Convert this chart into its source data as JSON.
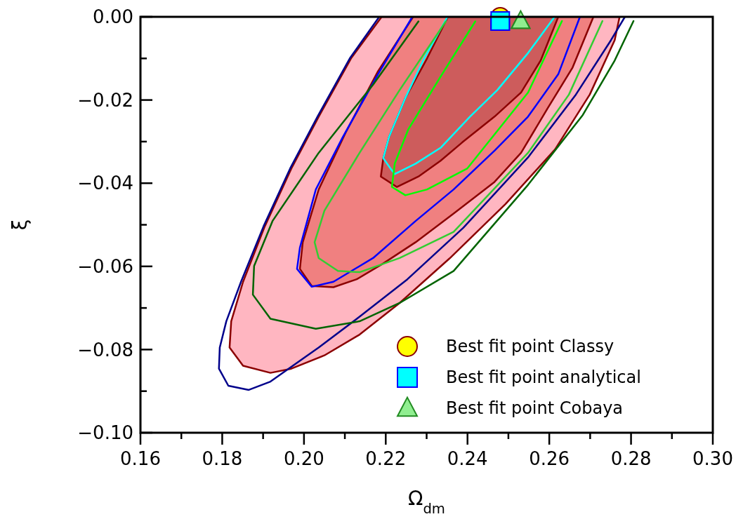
{
  "chart_data": {
    "type": "line",
    "xlabel": "Ω$_{dm}$",
    "ylabel": "ξ",
    "xlim": [
      0.16,
      0.3
    ],
    "ylim": [
      -0.1,
      0.0
    ],
    "xticks": [
      {
        "value": 0.16,
        "label": "0.16"
      },
      {
        "value": 0.17,
        "label": null
      },
      {
        "value": 0.18,
        "label": "0.18"
      },
      {
        "value": 0.19,
        "label": null
      },
      {
        "value": 0.2,
        "label": "0.20"
      },
      {
        "value": 0.21,
        "label": null
      },
      {
        "value": 0.22,
        "label": "0.22"
      },
      {
        "value": 0.23,
        "label": null
      },
      {
        "value": 0.24,
        "label": "0.24"
      },
      {
        "value": 0.25,
        "label": null
      },
      {
        "value": 0.26,
        "label": "0.26"
      },
      {
        "value": 0.27,
        "label": null
      },
      {
        "value": 0.28,
        "label": "0.28"
      },
      {
        "value": 0.29,
        "label": null
      },
      {
        "value": 0.3,
        "label": "0.30"
      }
    ],
    "yticks": [
      {
        "value": 0.0,
        "label": "0.00"
      },
      {
        "value": -0.01,
        "label": null
      },
      {
        "value": -0.02,
        "label": "−0.02"
      },
      {
        "value": -0.03,
        "label": null
      },
      {
        "value": -0.04,
        "label": "−0.04"
      },
      {
        "value": -0.05,
        "label": null
      },
      {
        "value": -0.06,
        "label": "−0.06"
      },
      {
        "value": -0.07,
        "label": null
      },
      {
        "value": -0.08,
        "label": "−0.08"
      },
      {
        "value": -0.09,
        "label": null
      },
      {
        "value": -0.1,
        "label": "−0.10"
      }
    ],
    "grid": false,
    "legend": "bottom right",
    "series": [
      {
        "type": "area",
        "color": "#ffb6c1",
        "x": [
          0.219,
          0.2115,
          0.2036,
          0.1969,
          0.1904,
          0.1851,
          0.1822,
          0.1818,
          0.1851,
          0.1918,
          0.1969,
          0.205,
          0.2136,
          0.2234,
          0.2356,
          0.2493,
          0.2614,
          0.2699,
          0.276,
          0.2772
        ],
        "values": [
          0,
          -0.01,
          -0.024,
          -0.0365,
          -0.0504,
          -0.0637,
          -0.0732,
          -0.0795,
          -0.0839,
          -0.0856,
          -0.0846,
          -0.0814,
          -0.0764,
          -0.0688,
          -0.0581,
          -0.045,
          -0.0319,
          -0.0187,
          -0.0056,
          0
        ]
      },
      {
        "type": "area",
        "color": "#f08080",
        "x": [
          0.2267,
          0.2181,
          0.2102,
          0.2036,
          0.1997,
          0.199,
          0.2019,
          0.2072,
          0.2129,
          0.2194,
          0.2273,
          0.2366,
          0.2466,
          0.2531,
          0.2596,
          0.2657,
          0.2708
        ],
        "values": [
          0,
          -0.0131,
          -0.0278,
          -0.0415,
          -0.0542,
          -0.0606,
          -0.0647,
          -0.065,
          -0.0631,
          -0.0593,
          -0.0542,
          -0.0473,
          -0.0397,
          -0.0327,
          -0.022,
          -0.0122,
          0
        ]
      },
      {
        "type": "area",
        "color": "#cd5c5c",
        "x": [
          0.2352,
          0.2301,
          0.2248,
          0.2208,
          0.2194,
          0.2188,
          0.2227,
          0.228,
          0.2334,
          0.2387,
          0.2466,
          0.2531,
          0.2579,
          0.2622
        ],
        "values": [
          0,
          -0.01,
          -0.0195,
          -0.0289,
          -0.034,
          -0.0384,
          -0.0409,
          -0.0384,
          -0.0346,
          -0.0302,
          -0.024,
          -0.0182,
          -0.0105,
          0
        ]
      },
      {
        "type": "line",
        "color": "#00008b",
        "x": [
          0.2184,
          0.2112,
          0.2033,
          0.1966,
          0.1901,
          0.1846,
          0.181,
          0.1794,
          0.1792,
          0.1815,
          0.1865,
          0.1918,
          0.2036,
          0.2136,
          0.2253,
          0.239,
          0.2548,
          0.2665,
          0.2751,
          0.2785
        ],
        "values": [
          0,
          -0.01,
          -0.024,
          -0.0365,
          -0.0504,
          -0.0637,
          -0.0732,
          -0.0795,
          -0.0846,
          -0.0887,
          -0.0897,
          -0.0877,
          -0.0795,
          -0.0721,
          -0.0631,
          -0.0507,
          -0.0338,
          -0.0187,
          -0.0056,
          0
        ]
      },
      {
        "type": "line",
        "color": "#0000ff",
        "x": [
          0.2265,
          0.2181,
          0.2095,
          0.2029,
          0.199,
          0.1983,
          0.2019,
          0.2072,
          0.2169,
          0.2273,
          0.2366,
          0.2466,
          0.2548,
          0.2622,
          0.2675
        ],
        "values": [
          0,
          -0.0138,
          -0.0289,
          -0.0415,
          -0.0555,
          -0.0606,
          -0.0649,
          -0.0637,
          -0.058,
          -0.0491,
          -0.0415,
          -0.0322,
          -0.024,
          -0.0138,
          0
        ]
      },
      {
        "type": "line",
        "color": "#00ffff",
        "x": [
          0.2351,
          0.2294,
          0.2248,
          0.2208,
          0.2194,
          0.2212,
          0.2222,
          0.2273,
          0.2334,
          0.2406,
          0.2473,
          0.2548,
          0.2613
        ],
        "values": [
          0,
          -0.01,
          -0.0195,
          -0.0289,
          -0.034,
          -0.0365,
          -0.0378,
          -0.0353,
          -0.0315,
          -0.024,
          -0.0176,
          -0.0087,
          0
        ]
      },
      {
        "type": "line",
        "color": "#006400",
        "x": [
          0.228,
          0.2169,
          0.2036,
          0.1923,
          0.1878,
          0.1875,
          0.1918,
          0.2029,
          0.2136,
          0.2234,
          0.2366,
          0.2548,
          0.2682,
          0.276,
          0.2806
        ],
        "values": [
          -0.0011,
          -0.0163,
          -0.0327,
          -0.0491,
          -0.0599,
          -0.0668,
          -0.0726,
          -0.075,
          -0.0732,
          -0.0688,
          -0.0611,
          -0.0404,
          -0.0236,
          -0.0105,
          -0.001
        ]
      },
      {
        "type": "line",
        "color": "#32cd32",
        "x": [
          0.2347,
          0.2234,
          0.2136,
          0.205,
          0.2026,
          0.2036,
          0.2083,
          0.2136,
          0.2234,
          0.2366,
          0.2548,
          0.2648,
          0.273
        ],
        "values": [
          -0.0011,
          -0.0176,
          -0.0327,
          -0.0466,
          -0.0542,
          -0.058,
          -0.0611,
          -0.0614,
          -0.058,
          -0.0517,
          -0.0327,
          -0.0187,
          -0.001
        ]
      },
      {
        "type": "line",
        "color": "#00ff00",
        "x": [
          0.2419,
          0.2334,
          0.2255,
          0.2222,
          0.2215,
          0.2248,
          0.2301,
          0.2399,
          0.2548,
          0.2631
        ],
        "values": [
          -0.0011,
          -0.0144,
          -0.0271,
          -0.0353,
          -0.0409,
          -0.0429,
          -0.0415,
          -0.0365,
          -0.0182,
          -0.001
        ]
      },
      {
        "type": "scatter",
        "name": "Best fit point Classy",
        "marker": "circle",
        "color": "#ffff00",
        "x": [
          0.248
        ],
        "values": [
          0.0
        ]
      },
      {
        "type": "scatter",
        "name": "Best fit point analytical",
        "marker": "square",
        "color": "#00ffff",
        "x": [
          0.248
        ],
        "values": [
          -0.001
        ]
      },
      {
        "type": "scatter",
        "name": "Best fit point Cobaya",
        "marker": "triangle",
        "color": "#90ee90",
        "x": [
          0.253
        ],
        "values": [
          -0.001
        ]
      }
    ]
  }
}
